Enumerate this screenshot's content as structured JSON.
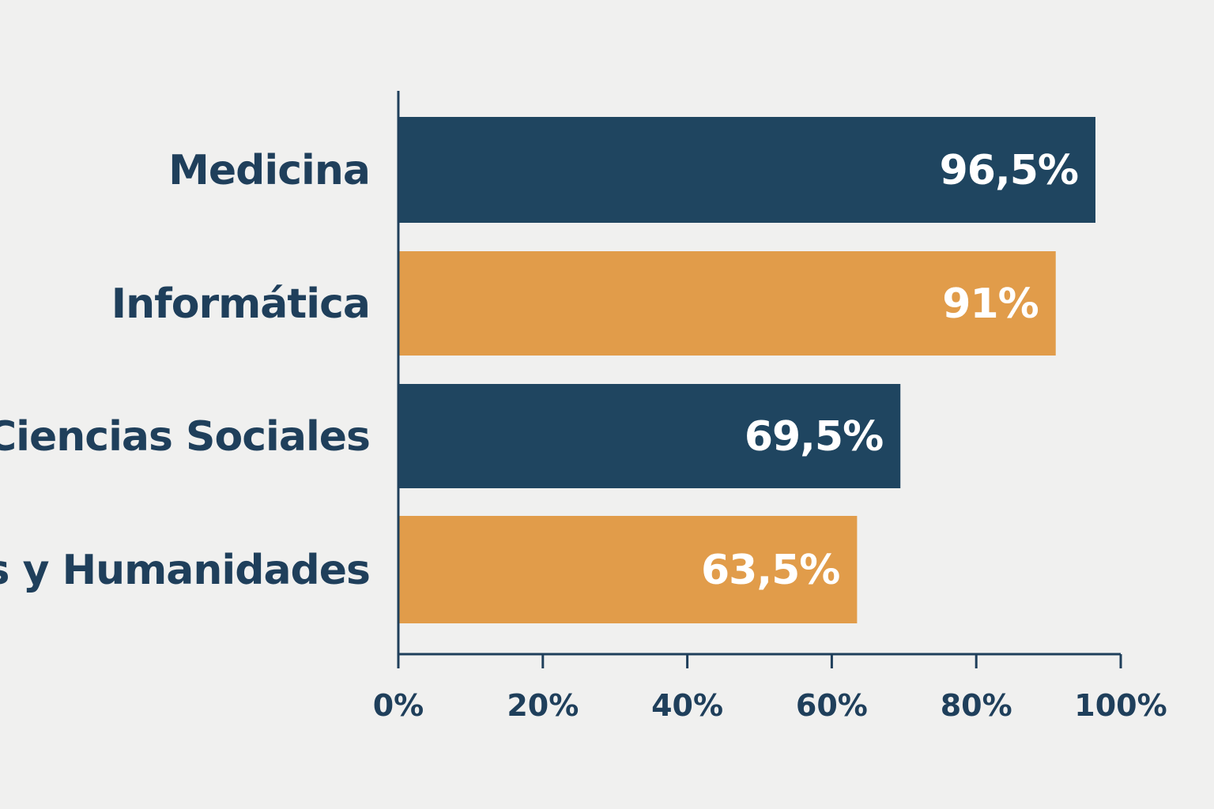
{
  "colors": {
    "background": "#f0f0ef",
    "navy": "#1f4560",
    "orange": "#e19c4a",
    "axis": "#1f3f5b",
    "text": "#1f3f5b",
    "value_text": "#ffffff"
  },
  "chart_data": {
    "type": "bar",
    "orientation": "horizontal",
    "categories": [
      "Medicina",
      "Informática",
      "Ciencias Sociales",
      "Artes y Humanidades"
    ],
    "values": [
      96.5,
      91,
      69.5,
      63.5
    ],
    "value_labels": [
      "96,5%",
      "91%",
      "69,5%",
      "63,5%"
    ],
    "bar_colors": [
      "#1f4560",
      "#e19c4a",
      "#1f4560",
      "#e19c4a"
    ],
    "xlim": [
      0,
      100
    ],
    "x_ticks": [
      0,
      20,
      40,
      60,
      80,
      100
    ],
    "x_tick_labels": [
      "0%",
      "20%",
      "40%",
      "60%",
      "80%",
      "100%"
    ],
    "title": "",
    "xlabel": "",
    "ylabel": "",
    "grid": false,
    "legend": "none"
  }
}
